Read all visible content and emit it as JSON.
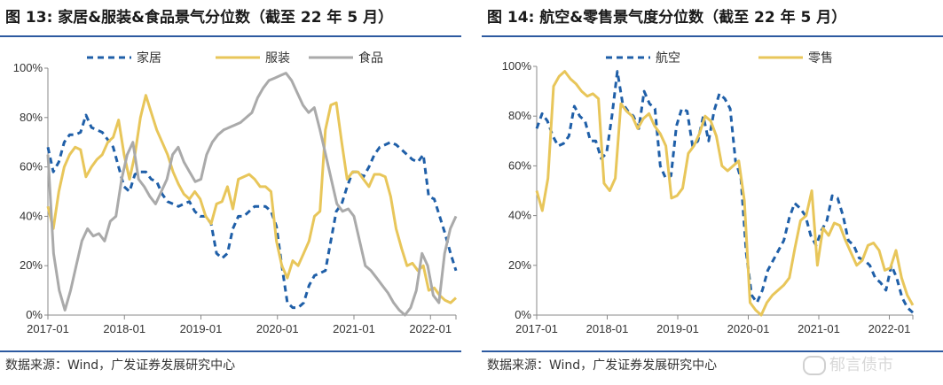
{
  "panels": [
    {
      "title": "图 13: 家居&服装&食品景气分位数（截至 22 年 5 月）",
      "source": "数据来源：Wind，广发证券发展研究中心",
      "chart_data": {
        "type": "line",
        "x_ticks": [
          "2017-01",
          "2018-01",
          "2019-01",
          "2020-01",
          "2021-01",
          "2022-01"
        ],
        "x_start": "2017-01",
        "x_end": "2022-05",
        "ylim": [
          0,
          100
        ],
        "y_ticks": [
          0,
          20,
          40,
          60,
          80,
          100
        ],
        "y_tick_labels": [
          "0%",
          "20%",
          "40%",
          "60%",
          "80%",
          "100%"
        ],
        "legend_position": "top",
        "series": [
          {
            "name": "家居",
            "color": "#1f5fa8",
            "dash": "dashed",
            "values": [
              68,
              58,
              62,
              70,
              73,
              73,
              74,
              81,
              76,
              75,
              74,
              71,
              68,
              60,
              52,
              50,
              57,
              58,
              58,
              55,
              54,
              49,
              46,
              45,
              44,
              45,
              46,
              42,
              40,
              40,
              37,
              25,
              23,
              25,
              35,
              40,
              40,
              42,
              44,
              44,
              44,
              42,
              36,
              20,
              5,
              3,
              3,
              5,
              12,
              16,
              17,
              18,
              30,
              42,
              45,
              52,
              58,
              58,
              56,
              60,
              65,
              68,
              69,
              70,
              69,
              67,
              65,
              63,
              62,
              65,
              48,
              47,
              40,
              33,
              25,
              18
            ]
          },
          {
            "name": "服装",
            "color": "#e8c65a",
            "dash": "solid",
            "values": [
              44,
              35,
              50,
              60,
              65,
              68,
              67,
              56,
              60,
              63,
              65,
              70,
              72,
              79,
              65,
              55,
              65,
              80,
              89,
              82,
              75,
              70,
              65,
              58,
              53,
              49,
              47,
              50,
              47,
              40,
              37,
              45,
              46,
              52,
              43,
              55,
              56,
              57,
              55,
              52,
              52,
              50,
              30,
              20,
              15,
              22,
              20,
              25,
              30,
              40,
              42,
              75,
              85,
              86,
              70,
              55,
              58,
              58,
              55,
              52,
              57,
              57,
              56,
              48,
              35,
              27,
              20,
              21,
              18,
              20,
              10,
              11,
              8,
              6,
              5,
              7
            ]
          },
          {
            "name": "食品",
            "color": "#aaaaaa",
            "dash": "solid",
            "values": [
              65,
              25,
              10,
              2,
              10,
              20,
              30,
              35,
              32,
              33,
              30,
              38,
              40,
              55,
              65,
              70,
              55,
              52,
              48,
              45,
              50,
              55,
              65,
              68,
              62,
              58,
              54,
              55,
              65,
              70,
              73,
              75,
              76,
              77,
              78,
              80,
              82,
              88,
              92,
              95,
              96,
              97,
              98,
              95,
              90,
              85,
              82,
              84,
              75,
              65,
              55,
              45,
              42,
              43,
              40,
              30,
              20,
              18,
              15,
              12,
              9,
              5,
              2,
              0,
              3,
              10,
              25,
              20,
              8,
              5,
              25,
              35,
              40
            ]
          }
        ]
      }
    },
    {
      "title": "图 14: 航空&零售景气度分位数（截至 22 年 5 月）",
      "source": "数据来源：Wind，广发证券发展研究中心",
      "chart_data": {
        "type": "line",
        "x_ticks": [
          "2017-01",
          "2018-01",
          "2019-01",
          "2020-01",
          "2021-01",
          "2022-01"
        ],
        "x_start": "2017-01",
        "x_end": "2022-05",
        "ylim": [
          0,
          100
        ],
        "y_ticks": [
          0,
          20,
          40,
          60,
          80,
          100
        ],
        "y_tick_labels": [
          "0%",
          "20%",
          "40%",
          "60%",
          "80%",
          "100%"
        ],
        "legend_position": "top",
        "series": [
          {
            "name": "航空",
            "color": "#1f5fa8",
            "dash": "dashed",
            "values": [
              75,
              81,
              78,
              72,
              68,
              69,
              72,
              84,
              80,
              78,
              70,
              70,
              63,
              65,
              80,
              98,
              85,
              82,
              80,
              75,
              90,
              85,
              83,
              60,
              55,
              56,
              76,
              83,
              82,
              68,
              70,
              80,
              70,
              82,
              89,
              87,
              83,
              62,
              55,
              25,
              8,
              5,
              10,
              18,
              22,
              26,
              30,
              39,
              45,
              43,
              40,
              32,
              28,
              34,
              38,
              48,
              47,
              40,
              30,
              28,
              23,
              22,
              20,
              15,
              13,
              10,
              20,
              15,
              7,
              3,
              1
            ]
          },
          {
            "name": "零售",
            "color": "#e8c65a",
            "dash": "solid",
            "values": [
              50,
              42,
              55,
              92,
              96,
              98,
              95,
              93,
              90,
              88,
              89,
              87,
              53,
              50,
              55,
              85,
              82,
              80,
              75,
              79,
              81,
              76,
              73,
              68,
              47,
              48,
              51,
              65,
              68,
              73,
              80,
              78,
              72,
              60,
              58,
              60,
              62,
              46,
              5,
              2,
              0,
              5,
              8,
              10,
              12,
              15,
              27,
              38,
              40,
              50,
              20,
              35,
              32,
              37,
              36,
              30,
              25,
              20,
              22,
              28,
              29,
              26,
              18,
              19,
              26,
              15,
              8,
              4
            ]
          }
        ]
      }
    }
  ],
  "watermark": "郁言债市"
}
